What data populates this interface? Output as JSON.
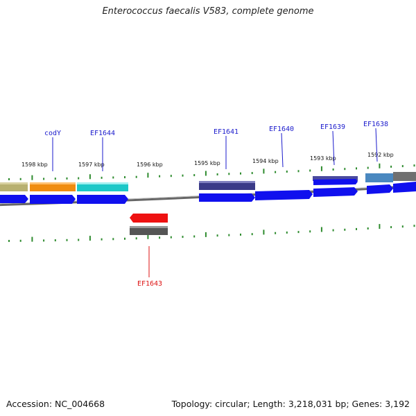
{
  "title": "Enterococcus faecalis V583, complete genome",
  "footer": {
    "accession": "Accession: NC_004668",
    "summary": "Topology: circular; Length: 3,218,031 bp; Genes: 3,192"
  },
  "colors": {
    "backbone": "#7a7a7a",
    "tick": "#2e8b2e",
    "cds": "#1010ee",
    "forward_label": "#1a1acc",
    "reverse_label": "#dd1111"
  },
  "kbp_labels": [
    "1598 kbp",
    "1597 kbp",
    "1596 kbp",
    "1595 kbp",
    "1594 kbp",
    "1593 kbp",
    "1592 kbp"
  ],
  "genes": [
    {
      "name": "codY",
      "strand": "+",
      "color": "#f08c10"
    },
    {
      "name": "EF1644",
      "strand": "+",
      "color": "#1cc8c8"
    },
    {
      "name": "EF1641",
      "strand": "+",
      "color": "#3a3a88"
    },
    {
      "name": "EF1640",
      "strand": "+",
      "color": "#1010ee"
    },
    {
      "name": "EF1639",
      "strand": "+",
      "color": "#4a4aa0"
    },
    {
      "name": "EF1638",
      "strand": "+",
      "color": "#4a88c0"
    },
    {
      "name": "EF1643",
      "strand": "-",
      "color": "#ee1111"
    }
  ]
}
